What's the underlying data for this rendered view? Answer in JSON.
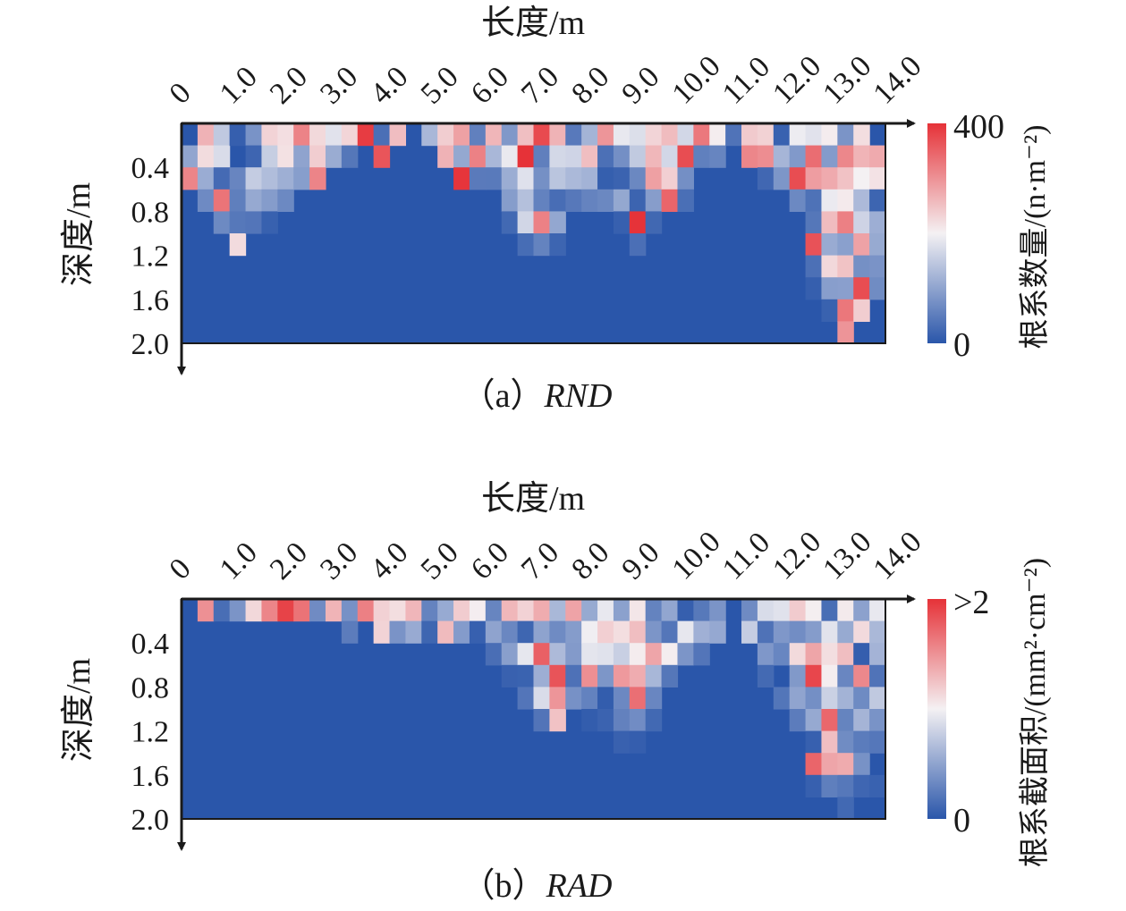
{
  "colors": {
    "low": "#2a56aa",
    "mid": "#f4f1f3",
    "high": "#e63238",
    "axis": "#1a1a1a"
  },
  "chart_data": [
    {
      "type": "heatmap",
      "id": "rnd",
      "caption_prefix": "（a）",
      "caption_metric": "RND",
      "xlabel": "长度/m",
      "ylabel": "深度/m",
      "x_ticks": [
        "0",
        "1.0",
        "2.0",
        "3.0",
        "4.0",
        "5.0",
        "6.0",
        "7.0",
        "8.0",
        "9.0",
        "10.0",
        "11.0",
        "12.0",
        "13.0",
        "14.0"
      ],
      "y_ticks": [
        "0.4",
        "0.8",
        "1.2",
        "1.6",
        "2.0"
      ],
      "xlim": [
        0,
        14
      ],
      "ylim": [
        0,
        2.0
      ],
      "colorbar": {
        "label": "根系数量/(n·m⁻²)",
        "max_label": "400",
        "min_label": "0",
        "min": 0,
        "max": 400
      },
      "rows": 10,
      "cols": 44,
      "depth_profile": [
        [
          0.0,
          2
        ],
        [
          1.0,
          6
        ],
        [
          2.0,
          4
        ],
        [
          3.0,
          2
        ],
        [
          4.0,
          1
        ],
        [
          5.0,
          1
        ],
        [
          6.0,
          3
        ],
        [
          7.0,
          6
        ],
        [
          8.0,
          4
        ],
        [
          9.0,
          6
        ],
        [
          10.0,
          2
        ],
        [
          11.0,
          1
        ],
        [
          12.0,
          3
        ],
        [
          13.0,
          10
        ],
        [
          14.0,
          9
        ]
      ],
      "hot_spots": [
        {
          "x": 7.1,
          "depth": 0.9,
          "value": 0.95
        },
        {
          "x": 9.6,
          "depth": 0.55,
          "value": 0.95
        },
        {
          "x": 13.1,
          "depth": 1.35,
          "value": 0.95
        },
        {
          "x": 2.3,
          "depth": 0.1,
          "value": 0.9
        },
        {
          "x": 5.9,
          "depth": 0.3,
          "value": 0.85
        },
        {
          "x": 6.7,
          "depth": 0.25,
          "value": 0.9
        }
      ],
      "seed": 17
    },
    {
      "type": "heatmap",
      "id": "rad",
      "caption_prefix": "（b）",
      "caption_metric": "RAD",
      "xlabel": "长度/m",
      "ylabel": "深度/m",
      "x_ticks": [
        "0",
        "1.0",
        "2.0",
        "3.0",
        "4.0",
        "5.0",
        "6.0",
        "7.0",
        "8.0",
        "9.0",
        "10.0",
        "11.0",
        "12.0",
        "13.0",
        "14.0"
      ],
      "y_ticks": [
        "0.4",
        "0.8",
        "1.2",
        "1.6",
        "2.0"
      ],
      "xlim": [
        0,
        14
      ],
      "ylim": [
        0,
        2.0
      ],
      "colorbar": {
        "label": "根系截面积/(mm²·cm⁻²)",
        "max_label": ">2",
        "min_label": "0",
        "min": 0,
        "max": 2
      },
      "rows": 10,
      "cols": 44,
      "depth_profile": [
        [
          0.0,
          1
        ],
        [
          1.0,
          1
        ],
        [
          2.0,
          1
        ],
        [
          3.0,
          1
        ],
        [
          4.0,
          2
        ],
        [
          5.0,
          1
        ],
        [
          6.0,
          2
        ],
        [
          7.0,
          6
        ],
        [
          8.0,
          5
        ],
        [
          9.0,
          7
        ],
        [
          10.0,
          3
        ],
        [
          11.0,
          1
        ],
        [
          12.0,
          5
        ],
        [
          13.0,
          10
        ],
        [
          14.0,
          9
        ]
      ],
      "hot_spots": [
        {
          "x": 9.5,
          "depth": 0.5,
          "value": 1.0
        },
        {
          "x": 9.0,
          "depth": 0.7,
          "value": 1.0
        },
        {
          "x": 13.0,
          "depth": 1.5,
          "value": 1.0
        },
        {
          "x": 12.9,
          "depth": 0.4,
          "value": 1.0
        },
        {
          "x": 7.4,
          "depth": 0.85,
          "value": 0.95
        },
        {
          "x": 4.5,
          "depth": 0.15,
          "value": 0.9
        }
      ],
      "seed": 41
    }
  ]
}
